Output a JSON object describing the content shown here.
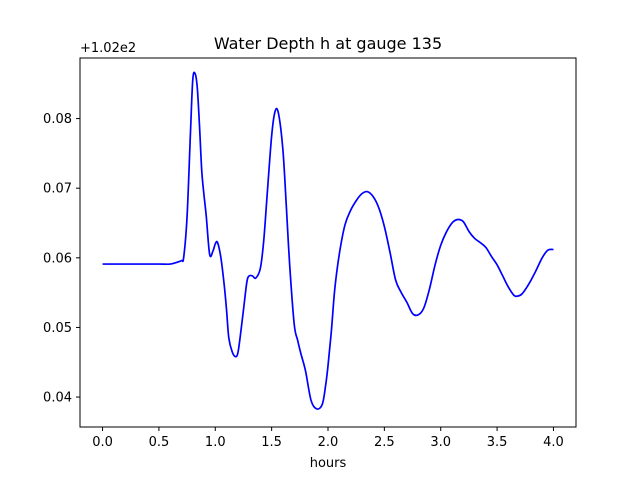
{
  "chart_data": {
    "type": "line",
    "title": "Water Depth h at gauge 135",
    "xlabel": "hours",
    "ylabel": "",
    "y_offset_label": "+1.02e2",
    "xlim": [
      -0.2,
      4.2
    ],
    "ylim": [
      0.0357,
      0.0887
    ],
    "x_ticks": [
      0.0,
      0.5,
      1.0,
      1.5,
      2.0,
      2.5,
      3.0,
      3.5,
      4.0
    ],
    "x_tick_labels": [
      "0.0",
      "0.5",
      "1.0",
      "1.5",
      "2.0",
      "2.5",
      "3.0",
      "3.5",
      "4.0"
    ],
    "y_ticks": [
      0.04,
      0.05,
      0.06,
      0.07,
      0.08
    ],
    "y_tick_labels": [
      "0.04",
      "0.05",
      "0.06",
      "0.07",
      "0.08"
    ],
    "grid": false,
    "series": [
      {
        "color": "#0000ff",
        "x": [
          0.0,
          0.1,
          0.2,
          0.3,
          0.4,
          0.5,
          0.6,
          0.65,
          0.7,
          0.72,
          0.75,
          0.78,
          0.8,
          0.82,
          0.84,
          0.86,
          0.88,
          0.9,
          0.92,
          0.95,
          0.98,
          1.0,
          1.02,
          1.05,
          1.08,
          1.1,
          1.12,
          1.15,
          1.18,
          1.2,
          1.22,
          1.25,
          1.28,
          1.3,
          1.33,
          1.36,
          1.4,
          1.43,
          1.46,
          1.5,
          1.53,
          1.56,
          1.6,
          1.63,
          1.66,
          1.7,
          1.73,
          1.76,
          1.8,
          1.85,
          1.9,
          1.95,
          1.98,
          2.0,
          2.03,
          2.06,
          2.1,
          2.15,
          2.2,
          2.25,
          2.3,
          2.35,
          2.4,
          2.45,
          2.5,
          2.55,
          2.6,
          2.65,
          2.7,
          2.75,
          2.8,
          2.85,
          2.9,
          2.95,
          3.0,
          3.05,
          3.1,
          3.15,
          3.2,
          3.25,
          3.3,
          3.35,
          3.4,
          3.45,
          3.5,
          3.55,
          3.6,
          3.65,
          3.68,
          3.72,
          3.78,
          3.84,
          3.9,
          3.95,
          4.0
        ],
        "y": [
          0.0591,
          0.0591,
          0.0591,
          0.0591,
          0.0591,
          0.0591,
          0.0591,
          0.0593,
          0.0596,
          0.0601,
          0.066,
          0.078,
          0.0855,
          0.0865,
          0.0845,
          0.079,
          0.0725,
          0.069,
          0.066,
          0.0605,
          0.061,
          0.062,
          0.0622,
          0.06,
          0.056,
          0.0525,
          0.0485,
          0.0465,
          0.0458,
          0.0463,
          0.0485,
          0.0525,
          0.0565,
          0.0574,
          0.0574,
          0.0571,
          0.0585,
          0.0625,
          0.069,
          0.0775,
          0.081,
          0.0808,
          0.0755,
          0.0675,
          0.059,
          0.0505,
          0.0482,
          0.0462,
          0.0438,
          0.0395,
          0.0383,
          0.039,
          0.0418,
          0.0445,
          0.0495,
          0.0555,
          0.0605,
          0.0647,
          0.0668,
          0.0682,
          0.0692,
          0.0695,
          0.0688,
          0.0672,
          0.0645,
          0.0608,
          0.0568,
          0.055,
          0.0536,
          0.052,
          0.0518,
          0.0528,
          0.0555,
          0.059,
          0.0618,
          0.0637,
          0.065,
          0.0655,
          0.0652,
          0.0638,
          0.0628,
          0.0622,
          0.0615,
          0.0602,
          0.059,
          0.0574,
          0.0558,
          0.0546,
          0.0545,
          0.0548,
          0.0562,
          0.058,
          0.06,
          0.0611,
          0.0612
        ]
      }
    ]
  }
}
